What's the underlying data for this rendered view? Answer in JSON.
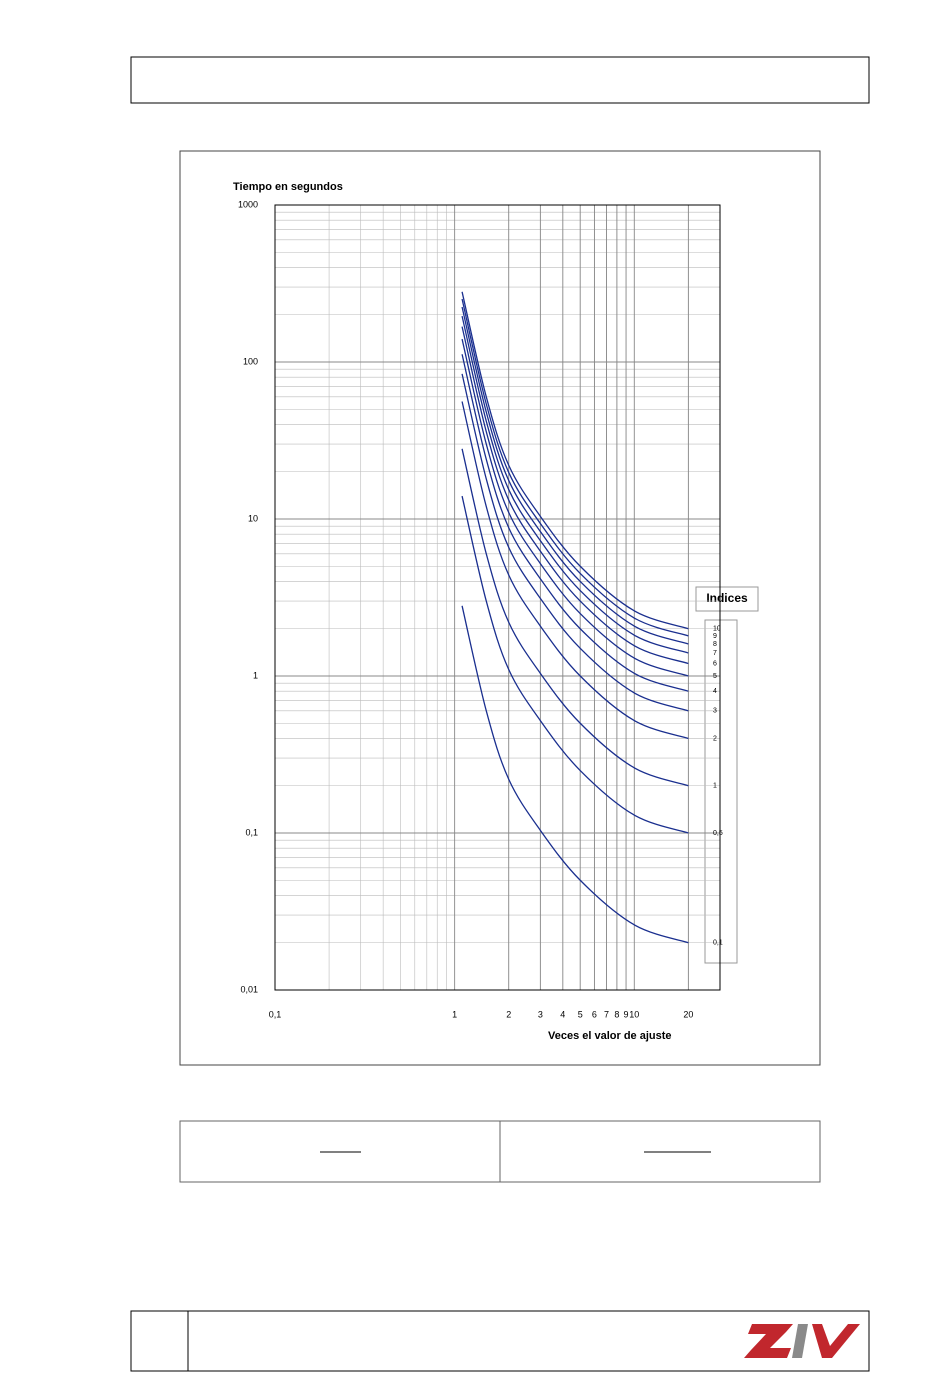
{
  "chart_data": {
    "type": "line",
    "y_label": "Tiempo en segundos",
    "x_label": "Veces el valor de ajuste",
    "legend_title": "Indices",
    "log_x": true,
    "log_y": true,
    "grid": true,
    "xlim": [
      0.1,
      30
    ],
    "ylim": [
      0.01,
      1000
    ],
    "xticks": [
      {
        "value": 0.1,
        "label": "0,1"
      },
      1,
      2,
      3,
      4,
      5,
      6,
      7,
      8,
      9,
      10,
      20
    ],
    "yticks": [
      {
        "value": 0.01,
        "label": "0,01"
      },
      {
        "value": 0.1,
        "label": "0,1"
      },
      1,
      10,
      100,
      1000
    ],
    "x": [
      1.1,
      1.5,
      2,
      3,
      5,
      10,
      20
    ],
    "series": [
      {
        "name": "10",
        "color": "#1a2f8f",
        "values": [
          280,
          60,
          22,
          10.4,
          5,
          2.6,
          2
        ]
      },
      {
        "name": "9",
        "color": "#1a2f8f",
        "values": [
          252,
          54,
          19.8,
          9.36,
          4.5,
          2.34,
          1.8
        ]
      },
      {
        "name": "8",
        "color": "#1a2f8f",
        "values": [
          224,
          48,
          17.6,
          8.32,
          4,
          2.08,
          1.6
        ]
      },
      {
        "name": "7",
        "color": "#1a2f8f",
        "values": [
          196,
          42,
          15.4,
          7.28,
          3.5,
          1.82,
          1.4
        ]
      },
      {
        "name": "6",
        "color": "#1a2f8f",
        "values": [
          168,
          36,
          13.2,
          6.24,
          3,
          1.56,
          1.2
        ]
      },
      {
        "name": "5",
        "color": "#1a2f8f",
        "values": [
          140,
          30,
          11,
          5.2,
          2.5,
          1.3,
          1
        ]
      },
      {
        "name": "4",
        "color": "#1a2f8f",
        "values": [
          112,
          24,
          8.8,
          4.16,
          2,
          1.04,
          0.8
        ]
      },
      {
        "name": "3",
        "color": "#1a2f8f",
        "values": [
          84,
          18,
          6.6,
          3.12,
          1.5,
          0.78,
          0.6
        ]
      },
      {
        "name": "2",
        "color": "#1a2f8f",
        "values": [
          56,
          12,
          4.4,
          2.08,
          1,
          0.52,
          0.4
        ]
      },
      {
        "name": "1",
        "color": "#1a2f8f",
        "values": [
          28,
          6,
          2.2,
          1.04,
          0.5,
          0.26,
          0.2
        ]
      },
      {
        "name": "0,5",
        "color": "#1a2f8f",
        "values": [
          14,
          3,
          1.1,
          0.52,
          0.25,
          0.13,
          0.1
        ]
      },
      {
        "name": "0,1",
        "color": "#1a2f8f",
        "values": [
          2.8,
          0.6,
          0.22,
          0.104,
          0.05,
          0.026,
          0.02
        ]
      }
    ]
  }
}
